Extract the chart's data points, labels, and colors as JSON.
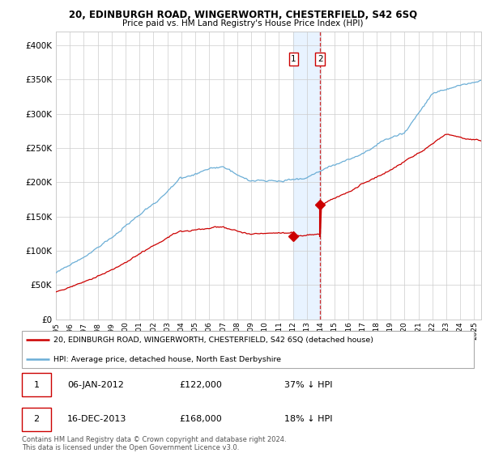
{
  "title": "20, EDINBURGH ROAD, WINGERWORTH, CHESTERFIELD, S42 6SQ",
  "subtitle": "Price paid vs. HM Land Registry's House Price Index (HPI)",
  "legend_line1": "20, EDINBURGH ROAD, WINGERWORTH, CHESTERFIELD, S42 6SQ (detached house)",
  "legend_line2": "HPI: Average price, detached house, North East Derbyshire",
  "table_row1": [
    "1",
    "06-JAN-2012",
    "£122,000",
    "37% ↓ HPI"
  ],
  "table_row2": [
    "2",
    "16-DEC-2013",
    "£168,000",
    "18% ↓ HPI"
  ],
  "footnote": "Contains HM Land Registry data © Crown copyright and database right 2024.\nThis data is licensed under the Open Government Licence v3.0.",
  "hpi_color": "#6baed6",
  "price_color": "#cc0000",
  "sale1_date_x": 2012.05,
  "sale1_price": 122000,
  "sale2_date_x": 2013.96,
  "sale2_price": 168000,
  "dashed_line_x": 2013.96,
  "shade_x_start": 2012.05,
  "shade_x_end": 2013.96,
  "ylim": [
    0,
    420000
  ],
  "xlim_start": 1995.0,
  "xlim_end": 2025.5,
  "yticks": [
    0,
    50000,
    100000,
    150000,
    200000,
    250000,
    300000,
    350000,
    400000
  ],
  "xticks": [
    1995,
    1996,
    1997,
    1998,
    1999,
    2000,
    2001,
    2002,
    2003,
    2004,
    2005,
    2006,
    2007,
    2008,
    2009,
    2010,
    2011,
    2012,
    2013,
    2014,
    2015,
    2016,
    2017,
    2018,
    2019,
    2020,
    2021,
    2022,
    2023,
    2024,
    2025
  ]
}
